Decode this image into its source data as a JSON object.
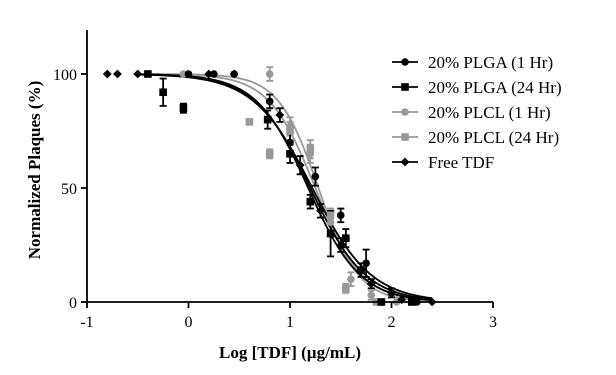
{
  "chart_data": {
    "type": "scatter",
    "xlabel": "Log [TDF] (µg/mL)",
    "ylabel": "Normalized Plaques (%)",
    "xlim": [
      -1,
      3
    ],
    "ylim": [
      0,
      120
    ],
    "x_ticks": [
      "-1",
      "0",
      "1",
      "2",
      "3"
    ],
    "y_ticks": [
      "0",
      "50",
      "100"
    ],
    "y_tick_values": [
      0,
      50,
      100
    ],
    "x_tick_values": [
      -1,
      0,
      1,
      2,
      3
    ],
    "grid": false,
    "legend_position": "right",
    "series": [
      {
        "name": "20% PLGA (1 Hr)",
        "color": "#000000",
        "marker": "circle",
        "fit": {
          "top": 100,
          "bottom": 0,
          "logEC50": 1.22,
          "hill": 1.5
        },
        "points": [
          {
            "x": -0.4,
            "y": 100,
            "err": 0
          },
          {
            "x": 0.0,
            "y": 100,
            "err": 0
          },
          {
            "x": 0.25,
            "y": 100,
            "err": 0
          },
          {
            "x": 0.45,
            "y": 100,
            "err": 0
          },
          {
            "x": 0.8,
            "y": 88,
            "err": 3
          },
          {
            "x": 1.0,
            "y": 70,
            "err": 4
          },
          {
            "x": 1.25,
            "y": 55,
            "err": 4
          },
          {
            "x": 1.5,
            "y": 38,
            "err": 3
          },
          {
            "x": 1.75,
            "y": 17,
            "err": 6
          },
          {
            "x": 2.0,
            "y": 4,
            "err": 2
          },
          {
            "x": 2.25,
            "y": 0,
            "err": 0
          }
        ]
      },
      {
        "name": "20% PLGA (24 Hr)",
        "color": "#000000",
        "marker": "square",
        "fit": {
          "top": 100,
          "bottom": 0,
          "logEC50": 1.2,
          "hill": 1.6
        },
        "points": [
          {
            "x": -0.4,
            "y": 100,
            "err": 0
          },
          {
            "x": -0.25,
            "y": 92,
            "err": 6
          },
          {
            "x": -0.05,
            "y": 85,
            "err": 2
          },
          {
            "x": 0.78,
            "y": 80,
            "err": 4
          },
          {
            "x": 1.0,
            "y": 65,
            "err": 4
          },
          {
            "x": 1.2,
            "y": 44,
            "err": 3
          },
          {
            "x": 1.4,
            "y": 30,
            "err": 10
          },
          {
            "x": 1.55,
            "y": 28,
            "err": 4
          },
          {
            "x": 1.7,
            "y": 14,
            "err": 3
          },
          {
            "x": 1.9,
            "y": 0,
            "err": 0
          },
          {
            "x": 2.2,
            "y": 0,
            "err": 0
          }
        ]
      },
      {
        "name": "20% PLCL (1 Hr)",
        "color": "#999999",
        "marker": "circle",
        "fit": {
          "top": 100,
          "bottom": 0,
          "logEC50": 1.28,
          "hill": 2.2
        },
        "points": [
          {
            "x": -0.05,
            "y": 100,
            "err": 0
          },
          {
            "x": 0.8,
            "y": 100,
            "err": 3
          },
          {
            "x": 1.0,
            "y": 77,
            "err": 4
          },
          {
            "x": 1.2,
            "y": 65,
            "err": 4
          },
          {
            "x": 1.4,
            "y": 35,
            "err": 4
          },
          {
            "x": 1.6,
            "y": 10,
            "err": 3
          },
          {
            "x": 1.8,
            "y": 3,
            "err": 2
          },
          {
            "x": 2.05,
            "y": 0,
            "err": 0
          }
        ]
      },
      {
        "name": "20% PLCL (24 Hr)",
        "color": "#999999",
        "marker": "square",
        "fit": {
          "top": 100,
          "bottom": 0,
          "logEC50": 1.25,
          "hill": 1.9
        },
        "points": [
          {
            "x": 0.6,
            "y": 79,
            "err": 0
          },
          {
            "x": 0.8,
            "y": 65,
            "err": 2
          },
          {
            "x": 1.0,
            "y": 75,
            "err": 4
          },
          {
            "x": 1.2,
            "y": 67,
            "err": 4
          },
          {
            "x": 1.4,
            "y": 38,
            "err": 3
          },
          {
            "x": 1.55,
            "y": 6,
            "err": 2
          },
          {
            "x": 1.85,
            "y": 0,
            "err": 0
          }
        ]
      },
      {
        "name": "Free TDF",
        "color": "#000000",
        "marker": "diamond",
        "fit": {
          "top": 100,
          "bottom": 0,
          "logEC50": 1.18,
          "hill": 1.7
        },
        "points": [
          {
            "x": -0.8,
            "y": 100,
            "err": 0
          },
          {
            "x": -0.7,
            "y": 100,
            "err": 0
          },
          {
            "x": -0.5,
            "y": 100,
            "err": 0
          },
          {
            "x": 0.2,
            "y": 100,
            "err": 0
          },
          {
            "x": 0.45,
            "y": 100,
            "err": 0
          },
          {
            "x": 0.9,
            "y": 82,
            "err": 3
          },
          {
            "x": 1.1,
            "y": 60,
            "err": 4
          },
          {
            "x": 1.3,
            "y": 40,
            "err": 3
          },
          {
            "x": 1.5,
            "y": 25,
            "err": 3
          },
          {
            "x": 1.8,
            "y": 8,
            "err": 2
          },
          {
            "x": 2.1,
            "y": 1,
            "err": 0
          },
          {
            "x": 2.4,
            "y": 0,
            "err": 0
          }
        ]
      }
    ]
  }
}
